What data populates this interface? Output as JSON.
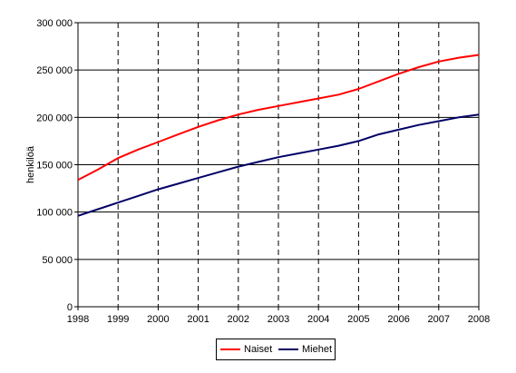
{
  "chart_data": {
    "type": "line",
    "title": "",
    "xlabel": "",
    "ylabel": "henkilöä",
    "x_ticks": [
      "1998",
      "1999",
      "2000",
      "2001",
      "2002",
      "2003",
      "2004",
      "2005",
      "2006",
      "2007",
      "2008"
    ],
    "y_ticks": [
      "0",
      "50 000",
      "100 000",
      "150 000",
      "200 000",
      "250 000",
      "300 000"
    ],
    "xlim": [
      1998,
      2008
    ],
    "ylim": [
      0,
      300000
    ],
    "grid": "horizontal solid, vertical dashed",
    "legend": "bottom",
    "series": [
      {
        "name": "Naiset",
        "color": "#ff0000",
        "points": [
          [
            1998,
            134000
          ],
          [
            1998.5,
            145000
          ],
          [
            1999,
            157000
          ],
          [
            1999.5,
            166000
          ],
          [
            2000,
            174000
          ],
          [
            2000.5,
            182000
          ],
          [
            2001,
            190000
          ],
          [
            2001.5,
            197000
          ],
          [
            2002,
            203000
          ],
          [
            2002.5,
            208000
          ],
          [
            2003,
            212000
          ],
          [
            2003.5,
            216000
          ],
          [
            2004,
            220000
          ],
          [
            2004.5,
            224000
          ],
          [
            2005,
            230000
          ],
          [
            2005.5,
            238000
          ],
          [
            2006,
            246000
          ],
          [
            2006.5,
            253000
          ],
          [
            2007,
            259000
          ],
          [
            2007.5,
            263000
          ],
          [
            2008,
            266000
          ]
        ]
      },
      {
        "name": "Miehet",
        "color": "#000066",
        "points": [
          [
            1998,
            96000
          ],
          [
            1998.5,
            103000
          ],
          [
            1999,
            110000
          ],
          [
            1999.5,
            117000
          ],
          [
            2000,
            124000
          ],
          [
            2000.5,
            130000
          ],
          [
            2001,
            136000
          ],
          [
            2001.5,
            142000
          ],
          [
            2002,
            148000
          ],
          [
            2002.5,
            153000
          ],
          [
            2003,
            158000
          ],
          [
            2003.5,
            162000
          ],
          [
            2004,
            166000
          ],
          [
            2004.5,
            170000
          ],
          [
            2005,
            175000
          ],
          [
            2005.5,
            182000
          ],
          [
            2006,
            187000
          ],
          [
            2006.5,
            192000
          ],
          [
            2007,
            196000
          ],
          [
            2007.5,
            200000
          ],
          [
            2008,
            203000
          ]
        ]
      }
    ]
  }
}
